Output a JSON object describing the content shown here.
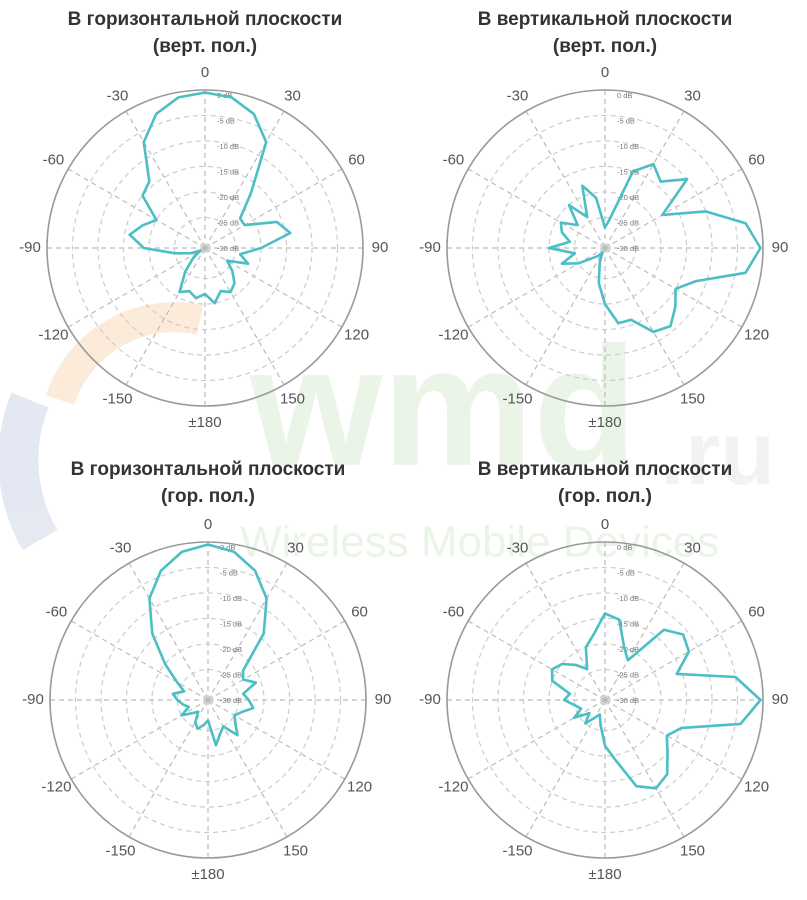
{
  "watermark": {
    "logo": "wmd",
    "domain": ".ru",
    "tagline": "Wireless Mobile Devices"
  },
  "chart_data": [
    {
      "type": "polar",
      "title": "В горизонтальной плоскости",
      "subtitle": "(верт. пол.)",
      "color": "#4bbfc4",
      "theta": [
        0,
        10,
        20,
        30,
        40,
        50,
        60,
        70,
        80,
        90,
        100,
        110,
        120,
        130,
        140,
        150,
        160,
        170,
        180,
        190,
        200,
        210,
        220,
        230,
        240,
        250,
        260,
        270,
        280,
        290,
        300,
        310,
        320,
        330,
        340,
        350
      ],
      "values": [
        -0.5,
        -1,
        -3,
        -7,
        -17,
        -22,
        -22,
        -16,
        -14,
        -20,
        -24,
        -22,
        -26,
        -24,
        -22,
        -21,
        -22,
        -20,
        -22,
        -21,
        -22,
        -21,
        -25,
        -28,
        -30,
        -28,
        -25,
        -19,
        -16,
        -18,
        -20,
        -15,
        -14,
        -7,
        -3,
        -1
      ],
      "rlim": [
        -31,
        0
      ],
      "rticks": [
        {
          "value": 0,
          "label": "0 dB"
        },
        {
          "value": -5,
          "label": "-5 dB"
        },
        {
          "value": -10,
          "label": "-10 dB"
        },
        {
          "value": -15,
          "label": "-15 dB"
        },
        {
          "value": -20,
          "label": "-20 dB"
        },
        {
          "value": -25,
          "label": "-25 dB"
        },
        {
          "value": -30,
          "label": "-30 dB"
        }
      ],
      "thetaticks": [
        0,
        30,
        60,
        90,
        120,
        150,
        {
          "value": 180,
          "label": "±180"
        },
        -150,
        -120,
        -90,
        -60,
        -30
      ]
    },
    {
      "type": "polar",
      "title": "В вертикальной плоскости",
      "subtitle": "(верт. пол.)",
      "color": "#4bbfc4",
      "theta": [
        0,
        10,
        20,
        30,
        40,
        50,
        60,
        70,
        80,
        90,
        100,
        110,
        120,
        130,
        140,
        150,
        160,
        170,
        180,
        190,
        200,
        210,
        220,
        230,
        240,
        250,
        260,
        270,
        280,
        290,
        300,
        310,
        320,
        330,
        340,
        350
      ],
      "values": [
        -27,
        -25,
        -15,
        -12,
        -14,
        -10,
        -18,
        -10,
        -3,
        -0.5,
        -3,
        -12,
        -15,
        -13,
        -11,
        -12,
        -16,
        -16,
        -20,
        -24,
        -28,
        -30,
        -29,
        -28,
        -25,
        -22,
        -25,
        -20,
        -24,
        -22,
        -21,
        -24,
        -20,
        -24,
        -18,
        -21
      ],
      "rlim": [
        -31,
        0
      ],
      "rticks": [
        {
          "value": 0,
          "label": "0 dB"
        },
        {
          "value": -5,
          "label": "-5 dB"
        },
        {
          "value": -10,
          "label": "-10 dB"
        },
        {
          "value": -15,
          "label": "-15 dB"
        },
        {
          "value": -20,
          "label": "-20 dB"
        },
        {
          "value": -25,
          "label": "-25 dB"
        },
        {
          "value": -30,
          "label": "-30 dB"
        }
      ],
      "thetaticks": [
        0,
        30,
        60,
        90,
        120,
        150,
        {
          "value": 180,
          "label": "±180"
        },
        -150,
        -120,
        -90,
        -60,
        -30
      ]
    },
    {
      "type": "polar",
      "title": "В горизонтальной плоскости",
      "subtitle": "(гор. пол.)",
      "color": "#4bbfc4",
      "theta": [
        0,
        10,
        20,
        30,
        40,
        50,
        60,
        70,
        80,
        90,
        100,
        110,
        120,
        130,
        140,
        150,
        160,
        170,
        180,
        190,
        200,
        210,
        220,
        230,
        240,
        250,
        260,
        270,
        280,
        290,
        300,
        310,
        320,
        330,
        340,
        350
      ],
      "values": [
        -0.5,
        -1.5,
        -4,
        -8,
        -14,
        -22,
        -23,
        -21,
        -24,
        -23,
        -22,
        -24,
        -25,
        -24,
        -22,
        -25,
        -24,
        -22,
        -27,
        -26,
        -25,
        -26,
        -28,
        -27,
        -25,
        -27,
        -26,
        -25,
        -24,
        -26,
        -24,
        -20,
        -14,
        -8,
        -4,
        -1.5
      ],
      "rlim": [
        -31,
        0
      ],
      "rticks": [
        {
          "value": 0,
          "label": "0 dB"
        },
        {
          "value": -5,
          "label": "-5 dB"
        },
        {
          "value": -10,
          "label": "-10 dB"
        },
        {
          "value": -15,
          "label": "-15 dB"
        },
        {
          "value": -20,
          "label": "-20 dB"
        },
        {
          "value": -25,
          "label": "-25 dB"
        },
        {
          "value": -30,
          "label": "-30 dB"
        }
      ],
      "thetaticks": [
        0,
        30,
        60,
        90,
        120,
        150,
        {
          "value": 180,
          "label": "±180"
        },
        -150,
        -120,
        -90,
        -60,
        -30
      ]
    },
    {
      "type": "polar",
      "title": "В вертикальной плоскости",
      "subtitle": "(гор. пол.)",
      "color": "#4bbfc4",
      "theta": [
        0,
        10,
        20,
        30,
        40,
        50,
        60,
        70,
        80,
        90,
        100,
        110,
        120,
        130,
        140,
        150,
        160,
        170,
        180,
        190,
        200,
        210,
        220,
        230,
        240,
        250,
        260,
        270,
        280,
        290,
        300,
        310,
        320,
        330,
        340,
        350
      ],
      "values": [
        -14,
        -15,
        -20,
        -22,
        -13,
        -11,
        -12,
        -16,
        -5,
        -0.5,
        -4,
        -15,
        -17,
        -15,
        -12,
        -11,
        -13,
        -19,
        -22,
        -26,
        -28,
        -27,
        -25,
        -27,
        -24,
        -26,
        -25,
        -23,
        -24,
        -20,
        -19,
        -20,
        -22,
        -24,
        -20,
        -18
      ],
      "rlim": [
        -31,
        0
      ],
      "rticks": [
        {
          "value": 0,
          "label": "0 dB"
        },
        {
          "value": -5,
          "label": "-5 dB"
        },
        {
          "value": -10,
          "label": "-10 dB"
        },
        {
          "value": -15,
          "label": "-15 dB"
        },
        {
          "value": -20,
          "label": "-20 dB"
        },
        {
          "value": -25,
          "label": "-25 dB"
        },
        {
          "value": -30,
          "label": "-30 dB"
        }
      ],
      "thetaticks": [
        0,
        30,
        60,
        90,
        120,
        150,
        {
          "value": 180,
          "label": "±180"
        },
        -150,
        -120,
        -90,
        -60,
        -30
      ]
    }
  ]
}
